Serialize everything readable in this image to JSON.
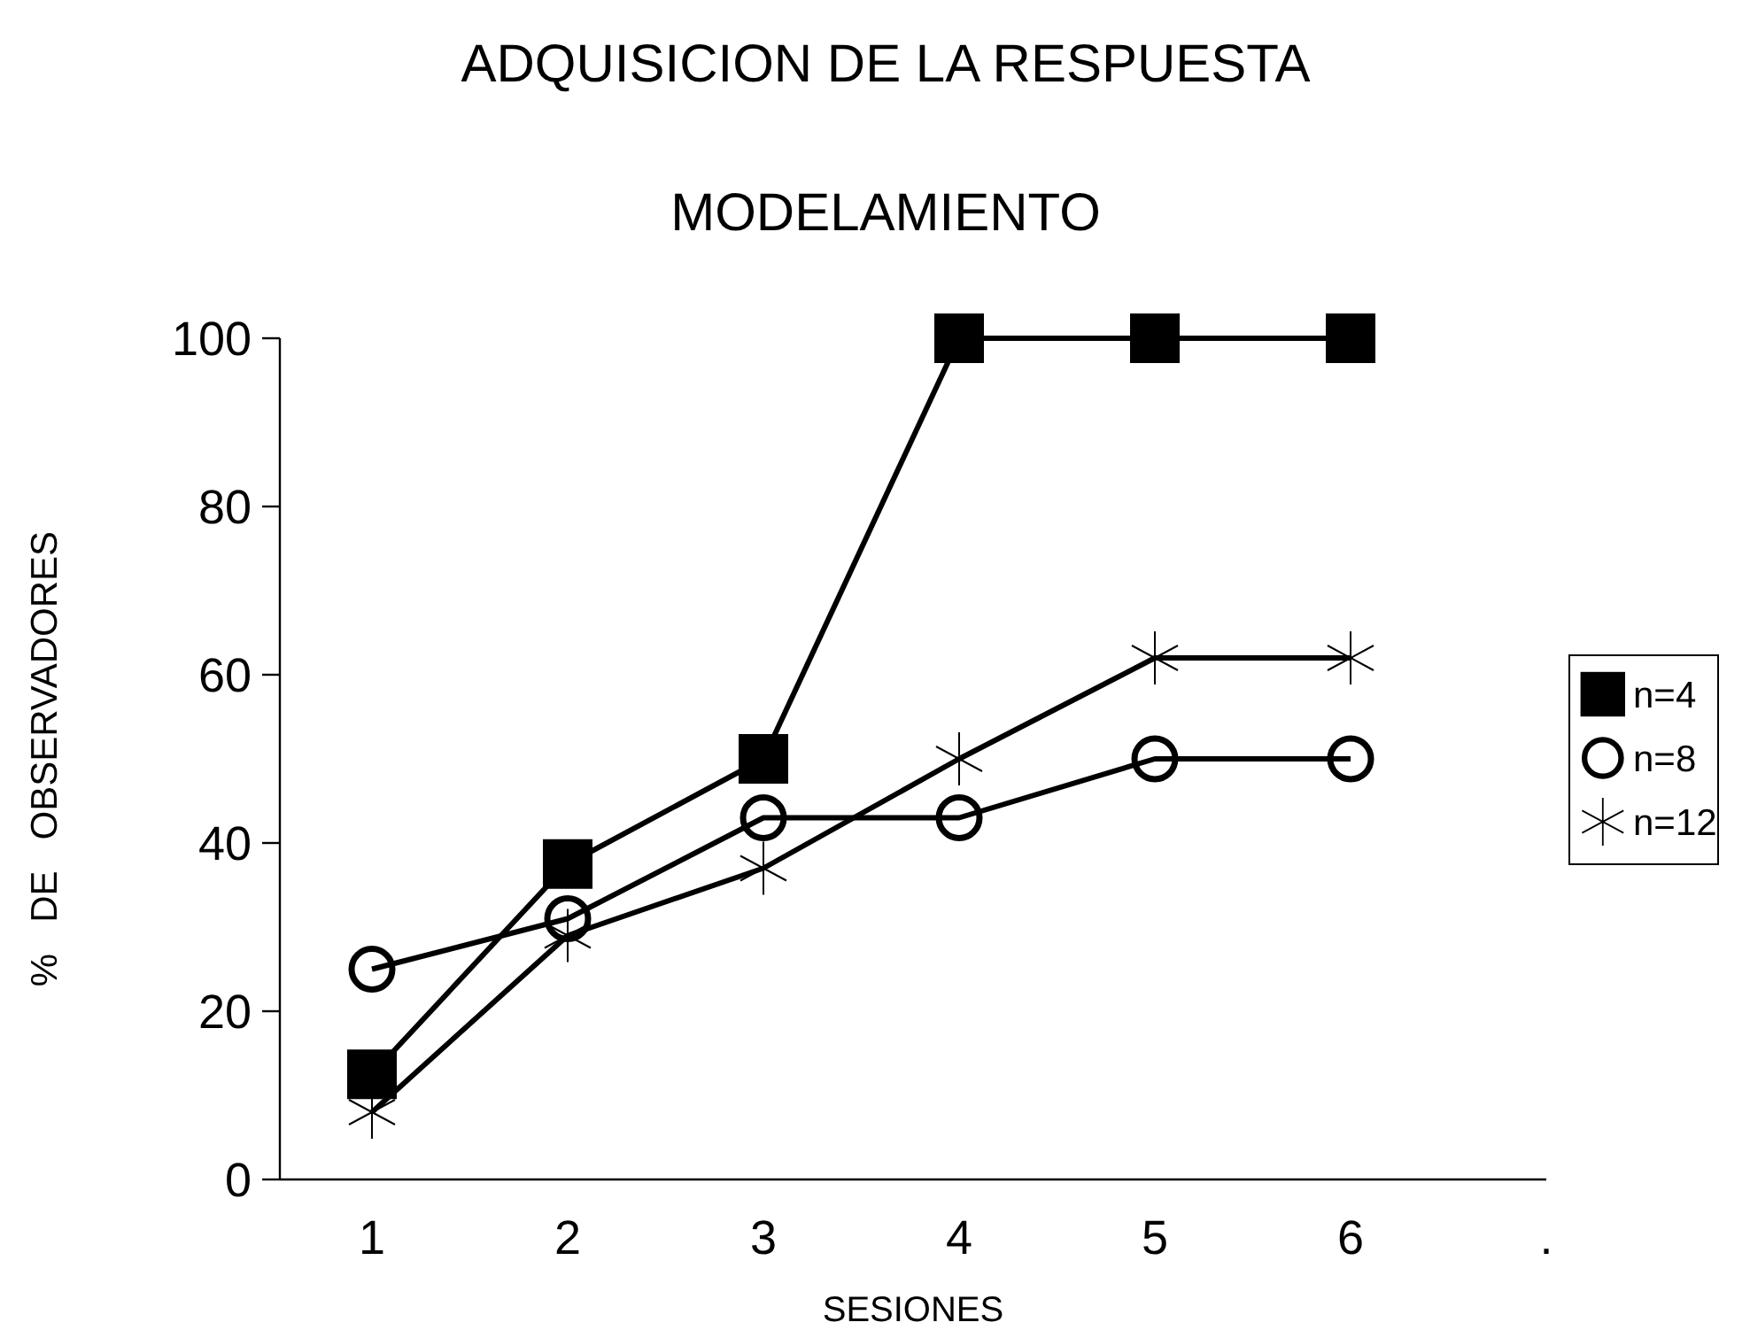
{
  "chart_data": {
    "type": "line",
    "title": "ADQUISICION DE LA RESPUESTA",
    "subtitle": "MODELAMIENTO",
    "xlabel": "SESIONES",
    "ylabel": "%   DE   OBSERVADORES",
    "categories": [
      "1",
      "2",
      "3",
      "4",
      "5",
      "6",
      "."
    ],
    "ylim": [
      0,
      100
    ],
    "yticks": [
      0,
      20,
      40,
      60,
      80,
      100
    ],
    "grid": false,
    "legend": "right",
    "series": [
      {
        "name": "n=4",
        "color": "#000000",
        "marker": "square",
        "values": [
          12.5,
          37.5,
          50,
          100,
          100,
          100,
          null
        ]
      },
      {
        "name": "n=8",
        "color": "#000000",
        "marker": "circle",
        "values": [
          25,
          31,
          43,
          43,
          50,
          50,
          null
        ]
      },
      {
        "name": "n=12",
        "color": "#000000",
        "marker": "cross",
        "values": [
          8,
          29,
          37,
          50,
          62,
          62,
          null
        ]
      }
    ]
  }
}
